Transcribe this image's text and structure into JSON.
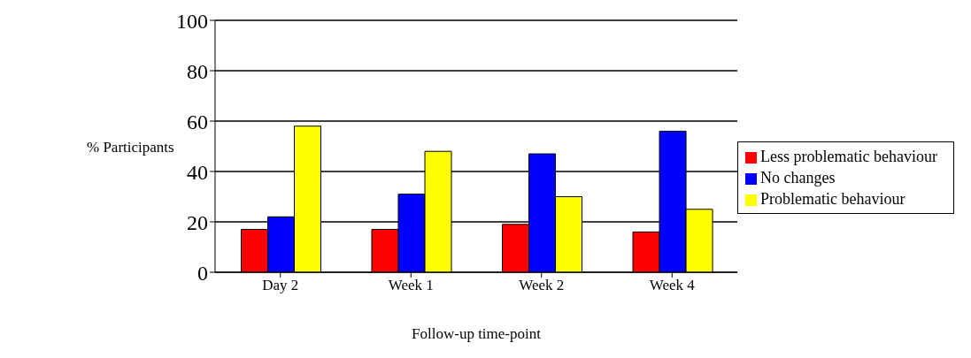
{
  "chart_data": {
    "type": "bar",
    "xlabel": "Follow-up time-point",
    "ylabel": "% Participants",
    "categories": [
      "Day 2",
      "Week 1",
      "Week 2",
      "Week 4"
    ],
    "series": [
      {
        "name": "Less problematic behaviour",
        "color": "#ff0000",
        "values": [
          17,
          17,
          19,
          16
        ]
      },
      {
        "name": "No changes",
        "color": "#0000ff",
        "values": [
          22,
          31,
          47,
          56
        ]
      },
      {
        "name": "Problematic behaviour",
        "color": "#ffff00",
        "values": [
          58,
          48,
          30,
          25
        ]
      }
    ],
    "ylim": [
      0,
      100
    ],
    "yticks": [
      0,
      20,
      40,
      60,
      80,
      100
    ],
    "grid": "y",
    "legend": "right"
  }
}
